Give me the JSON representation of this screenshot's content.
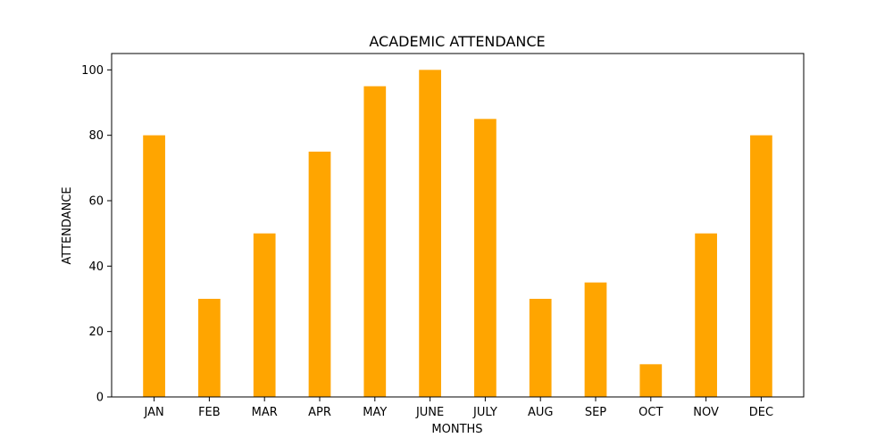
{
  "chart_data": {
    "type": "bar",
    "title": "ACADEMIC ATTENDANCE",
    "xlabel": "MONTHS",
    "ylabel": "ATTENDANCE",
    "categories": [
      "JAN",
      "FEB",
      "MAR",
      "APR",
      "MAY",
      "JUNE",
      "JULY",
      "AUG",
      "SEP",
      "OCT",
      "NOV",
      "DEC"
    ],
    "values": [
      80,
      30,
      50,
      75,
      95,
      100,
      85,
      30,
      35,
      10,
      50,
      80
    ],
    "ylim": [
      0,
      105
    ],
    "yticks": [
      0,
      20,
      40,
      60,
      80,
      100
    ],
    "bar_color": "#ffa500",
    "grid": false,
    "legend": "none"
  }
}
